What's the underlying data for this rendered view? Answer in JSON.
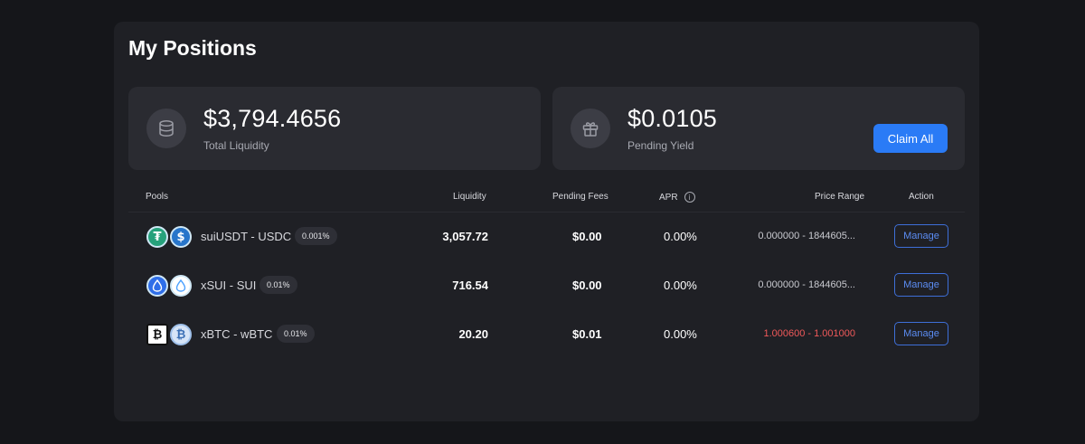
{
  "title": "My Positions",
  "summary": {
    "total_liquidity": {
      "value": "$3,794.4656",
      "label": "Total Liquidity",
      "icon": "database-icon"
    },
    "pending_yield": {
      "value": "$0.0105",
      "label": "Pending Yield",
      "icon": "gift-icon"
    },
    "claim_label": "Claim All"
  },
  "table": {
    "headers": {
      "pools": "Pools",
      "liquidity": "Liquidity",
      "pending_fees": "Pending Fees",
      "apr": "APR",
      "apr_info": "i",
      "price_range": "Price Range",
      "action": "Action"
    },
    "rows": [
      {
        "token_a": {
          "icon": "usdt-icon",
          "glyph": "₮",
          "color": "#26a17b"
        },
        "token_b": {
          "icon": "usdc-icon",
          "glyph": "$",
          "color": "#2775ca"
        },
        "pair": "suiUSDT - USDC",
        "fee_tier": "0.001%",
        "liquidity": "3,057.72",
        "pending_fees": "$0.00",
        "apr": "0.00%",
        "price_range": "0.000000 - 1844605...",
        "in_range": true,
        "action": "Manage"
      },
      {
        "token_a": {
          "icon": "xsui-icon",
          "glyph": "💧",
          "color": "#2f6ee8"
        },
        "token_b": {
          "icon": "sui-icon",
          "glyph": "💧",
          "color": "#ffffff"
        },
        "pair": "xSUI - SUI",
        "fee_tier": "0.01%",
        "liquidity": "716.54",
        "pending_fees": "$0.00",
        "apr": "0.00%",
        "price_range": "0.000000 - 1844605...",
        "in_range": true,
        "action": "Manage"
      },
      {
        "token_a": {
          "icon": "xbtc-icon",
          "glyph": "₿",
          "color": "#ffffff"
        },
        "token_b": {
          "icon": "wbtc-icon",
          "glyph": "₿",
          "color": "#d6e4f7"
        },
        "pair": "xBTC - wBTC",
        "fee_tier": "0.01%",
        "liquidity": "20.20",
        "pending_fees": "$0.01",
        "apr": "0.00%",
        "price_range": "1.000600 - 1.001000",
        "in_range": false,
        "action": "Manage"
      }
    ]
  },
  "colors": {
    "background": "#15161a",
    "panel": "#1f2025",
    "card": "#2a2b31",
    "accent": "#2a7bf6",
    "out_of_range": "#f0595a"
  }
}
